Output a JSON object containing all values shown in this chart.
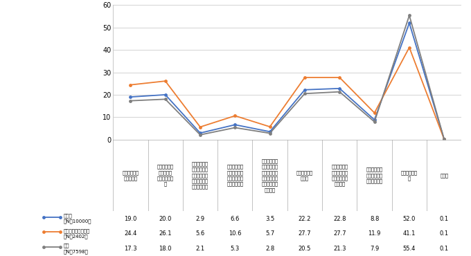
{
  "series": [
    {
      "name": "全　体\n（N＝10000）",
      "color": "#4472C4",
      "values": [
        19.0,
        20.0,
        2.9,
        6.6,
        3.5,
        22.2,
        22.8,
        8.8,
        52.0,
        0.1
      ]
    },
    {
      "name": "被災した経験がある\n（N＝2402）",
      "color": "#ED7D31",
      "values": [
        24.4,
        26.1,
        5.6,
        10.6,
        5.7,
        27.7,
        27.7,
        11.9,
        41.1,
        0.1
      ]
    },
    {
      "name": "なし\n（N＝7598）",
      "color": "#7F7F7F",
      "values": [
        17.3,
        18.0,
        2.1,
        5.3,
        2.8,
        20.5,
        21.3,
        7.9,
        55.4,
        0.1
      ]
    }
  ],
  "x_labels": [
    "避難訓練への\n参加・実施",
    "ハザードマッ\nプや避難場\n所・経路の確\n認",
    "マイ・タイム\nライン（被災\n時に行う自分\nのための防災\n計画）の作成",
    "防災情報の収\n集（アプリ、\nポータルサイ\nト等の活用）",
    "震災が起こり\nにくい場所へ\nの転居や、防\n災のための住\n宅の改修（耐\n震化等）",
    "家具などの転\n倒防止",
    "食料・水等の\n備蓄や非常持\nち出しバッグ\n等の準備",
    "自身や家族へ\nの災害に関す\nる学習・教育",
    "何もしていな\nい",
    "その他"
  ],
  "ylim": [
    0,
    60
  ],
  "yticks": [
    0,
    10,
    20,
    30,
    40,
    50,
    60
  ],
  "table_data": [
    [
      19.0,
      20.0,
      2.9,
      6.6,
      3.5,
      22.2,
      22.8,
      8.8,
      52.0,
      0.1
    ],
    [
      24.4,
      26.1,
      5.6,
      10.6,
      5.7,
      27.7,
      27.7,
      11.9,
      41.1,
      0.1
    ],
    [
      17.3,
      18.0,
      2.1,
      5.3,
      2.8,
      20.5,
      21.3,
      7.9,
      55.4,
      0.1
    ]
  ],
  "grid_color": "#CCCCCC",
  "border_color": "#AAAAAA"
}
